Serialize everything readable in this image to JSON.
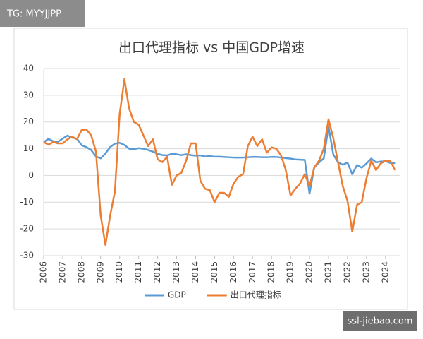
{
  "chart_data": {
    "type": "line",
    "title": "出口代理指标 vs 中国GDP增速",
    "x": [
      2006,
      2006.25,
      2006.5,
      2006.75,
      2007,
      2007.25,
      2007.5,
      2007.75,
      2008,
      2008.25,
      2008.5,
      2008.75,
      2009,
      2009.25,
      2009.5,
      2009.75,
      2010,
      2010.25,
      2010.5,
      2010.75,
      2011,
      2011.25,
      2011.5,
      2011.75,
      2012,
      2012.25,
      2012.5,
      2012.75,
      2013,
      2013.25,
      2013.5,
      2013.75,
      2014,
      2014.25,
      2014.5,
      2014.75,
      2015,
      2015.25,
      2015.5,
      2015.75,
      2016,
      2016.25,
      2016.5,
      2016.75,
      2017,
      2017.25,
      2017.5,
      2017.75,
      2018,
      2018.25,
      2018.5,
      2018.75,
      2019,
      2019.25,
      2019.5,
      2019.75,
      2020,
      2020.25,
      2020.5,
      2020.75,
      2021,
      2021.25,
      2021.5,
      2021.75,
      2022,
      2022.25,
      2022.5,
      2022.75,
      2023,
      2023.25,
      2023.5,
      2023.75,
      2024,
      2024.25,
      2024.5
    ],
    "series": [
      {
        "name": "GDP",
        "color": "#5b9bd5",
        "values": [
          12.4,
          13.7,
          12.8,
          12.6,
          13.8,
          14.9,
          14.1,
          13.8,
          11.3,
          10.6,
          9.5,
          7.1,
          6.4,
          8.2,
          10.6,
          11.9,
          12.2,
          11.4,
          10.0,
          9.8,
          10.2,
          10.0,
          9.5,
          8.9,
          8.1,
          7.6,
          7.5,
          8.1,
          7.9,
          7.6,
          7.9,
          7.6,
          7.4,
          7.5,
          7.1,
          7.2,
          7.0,
          7.0,
          6.9,
          6.8,
          6.7,
          6.7,
          6.7,
          6.8,
          6.9,
          6.9,
          6.8,
          6.8,
          6.9,
          6.9,
          6.7,
          6.5,
          6.3,
          6.0,
          5.9,
          5.8,
          -6.8,
          3.1,
          4.8,
          6.4,
          18.3,
          7.9,
          4.9,
          4.0,
          4.8,
          0.4,
          3.9,
          2.9,
          4.5,
          6.3,
          4.9,
          5.2,
          5.3,
          4.7,
          4.6
        ]
      },
      {
        "name": "出口代理指标",
        "color": "#ed7d31",
        "values": [
          12.5,
          11.5,
          12.5,
          12,
          12,
          13.5,
          14.5,
          13.5,
          17,
          17.2,
          15,
          9,
          -15,
          -26,
          -15,
          -6,
          23,
          36,
          25,
          20,
          19,
          15,
          11,
          13.5,
          6,
          5,
          7,
          -3.5,
          0,
          1,
          5.5,
          12,
          12,
          -2,
          -5,
          -5.5,
          -10,
          -6.5,
          -6.5,
          -8,
          -3,
          -0.5,
          0.5,
          11,
          14.5,
          11,
          13.5,
          8.5,
          10.5,
          10,
          7.5,
          2,
          -7.5,
          -5,
          -3,
          0.5,
          -4,
          3,
          5.5,
          10,
          21,
          14,
          5,
          -4,
          -9.5,
          -21,
          -11,
          -10,
          -1,
          5.5,
          2,
          4.5,
          5.5,
          5.5,
          2
        ]
      }
    ],
    "xlim": [
      2006,
      2024.75
    ],
    "xticks": [
      2006,
      2007,
      2008,
      2009,
      2010,
      2011,
      2012,
      2013,
      2014,
      2015,
      2016,
      2017,
      2018,
      2019,
      2020,
      2021,
      2022,
      2023,
      2024
    ],
    "ylim": [
      -30,
      40
    ],
    "yticks": [
      -30,
      -20,
      -10,
      0,
      10,
      20,
      30,
      40
    ],
    "grid": true,
    "legend": "bottom"
  },
  "watermarks": [
    "TG: MYYJJPP",
    "ssl-jiebao.com"
  ]
}
